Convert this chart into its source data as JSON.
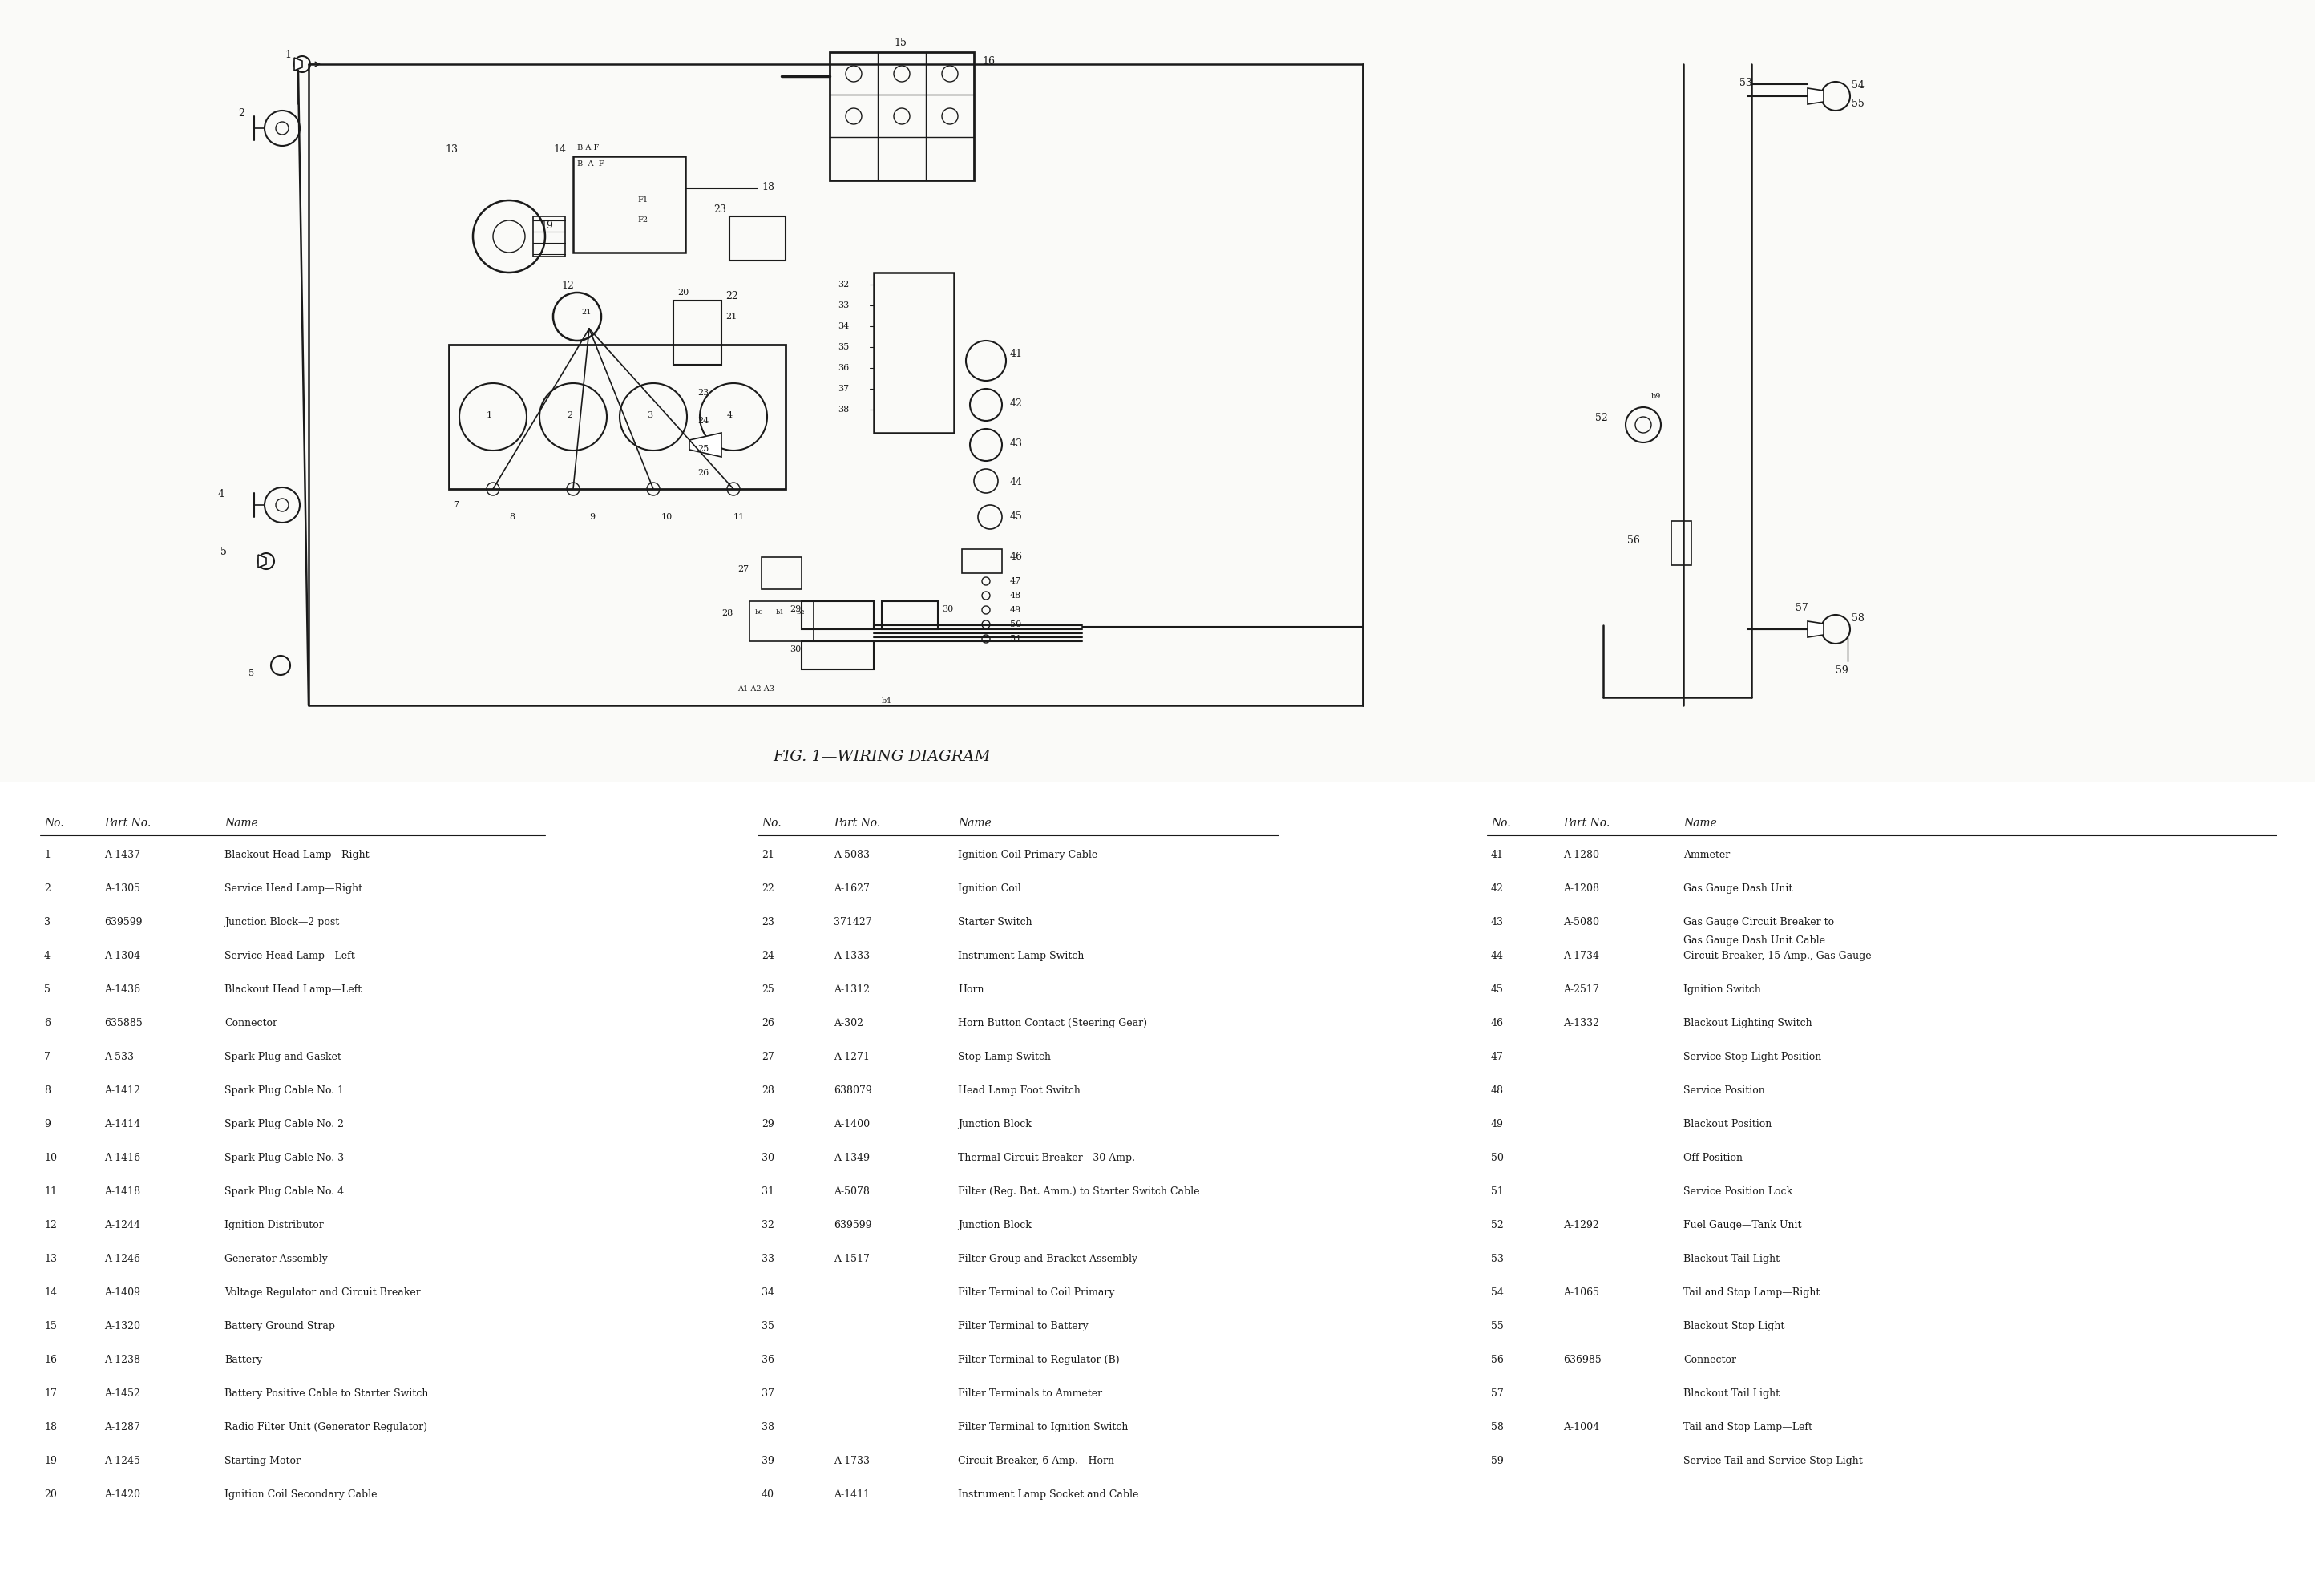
{
  "title": "FIG. 1—WIRING DIAGRAM",
  "bg_color": "#f0eeea",
  "diagram_bg": "#f8f6f2",
  "col1_data": [
    [
      "1",
      "A-1437",
      "Blackout Head Lamp—Right"
    ],
    [
      "2",
      "A-1305",
      "Service Head Lamp—Right"
    ],
    [
      "3",
      "639599",
      "Junction Block—2 post"
    ],
    [
      "4",
      "A-1304",
      "Service Head Lamp—Left"
    ],
    [
      "5",
      "A-1436",
      "Blackout Head Lamp—Left"
    ],
    [
      "6",
      "635885",
      "Connector"
    ],
    [
      "7",
      "A-533",
      "Spark Plug and Gasket"
    ],
    [
      "8",
      "A-1412",
      "Spark Plug Cable No. 1"
    ],
    [
      "9",
      "A-1414",
      "Spark Plug Cable No. 2"
    ],
    [
      "10",
      "A-1416",
      "Spark Plug Cable No. 3"
    ],
    [
      "11",
      "A-1418",
      "Spark Plug Cable No. 4"
    ],
    [
      "12",
      "A-1244",
      "Ignition Distributor"
    ],
    [
      "13",
      "A-1246",
      "Generator Assembly"
    ],
    [
      "14",
      "A-1409",
      "Voltage Regulator and Circuit Breaker"
    ],
    [
      "15",
      "A-1320",
      "Battery Ground Strap"
    ],
    [
      "16",
      "A-1238",
      "Battery"
    ],
    [
      "17",
      "A-1452",
      "Battery Positive Cable to Starter Switch"
    ],
    [
      "18",
      "A-1287",
      "Radio Filter Unit (Generator Regulator)"
    ],
    [
      "19",
      "A-1245",
      "Starting Motor"
    ],
    [
      "20",
      "A-1420",
      "Ignition Coil Secondary Cable"
    ]
  ],
  "col2_data": [
    [
      "21",
      "A-5083",
      "Ignition Coil Primary Cable"
    ],
    [
      "22",
      "A-1627",
      "Ignition Coil"
    ],
    [
      "23",
      "371427",
      "Starter Switch"
    ],
    [
      "24",
      "A-1333",
      "Instrument Lamp Switch"
    ],
    [
      "25",
      "A-1312",
      "Horn"
    ],
    [
      "26",
      "A-302",
      "Horn Button Contact (Steering Gear)"
    ],
    [
      "27",
      "A-1271",
      "Stop Lamp Switch"
    ],
    [
      "28",
      "638079",
      "Head Lamp Foot Switch"
    ],
    [
      "29",
      "A-1400",
      "Junction Block"
    ],
    [
      "30",
      "A-1349",
      "Thermal Circuit Breaker—30 Amp."
    ],
    [
      "31",
      "A-5078",
      "Filter (Reg. Bat. Amm.) to Starter Switch Cable"
    ],
    [
      "32",
      "639599",
      "Junction Block"
    ],
    [
      "33",
      "A-1517",
      "Filter Group and Bracket Assembly"
    ],
    [
      "34",
      "",
      "Filter Terminal to Coil Primary"
    ],
    [
      "35",
      "",
      "Filter Terminal to Battery"
    ],
    [
      "36",
      "",
      "Filter Terminal to Regulator (B)"
    ],
    [
      "37",
      "",
      "Filter Terminals to Ammeter"
    ],
    [
      "38",
      "",
      "Filter Terminal to Ignition Switch"
    ],
    [
      "39",
      "A-1733",
      "Circuit Breaker, 6 Amp.—Horn"
    ],
    [
      "40",
      "A-1411",
      "Instrument Lamp Socket and Cable"
    ]
  ],
  "col3_data": [
    [
      "41",
      "A-1280",
      "Ammeter"
    ],
    [
      "42",
      "A-1208",
      "Gas Gauge Dash Unit"
    ],
    [
      "43",
      "A-5080",
      "Gas Gauge Circuit Breaker to Gas Gauge Dash Unit Cable"
    ],
    [
      "44",
      "A-1734",
      "Circuit Breaker, 15 Amp., Gas Gauge"
    ],
    [
      "45",
      "A-2517",
      "Ignition Switch"
    ],
    [
      "46",
      "A-1332",
      "Blackout Lighting Switch"
    ],
    [
      "47",
      "",
      "Service Stop Light Position"
    ],
    [
      "48",
      "",
      "Service Position"
    ],
    [
      "49",
      "",
      "Blackout Position"
    ],
    [
      "50",
      "",
      "Off Position"
    ],
    [
      "51",
      "",
      "Service Position Lock"
    ],
    [
      "52",
      "A-1292",
      "Fuel Gauge—Tank Unit"
    ],
    [
      "53",
      "",
      "Blackout Tail Light"
    ],
    [
      "54",
      "A-1065",
      "Tail and Stop Lamp—Right"
    ],
    [
      "55",
      "",
      "Blackout Stop Light"
    ],
    [
      "56",
      "636985",
      "Connector"
    ],
    [
      "57",
      "",
      "Blackout Tail Light"
    ],
    [
      "58",
      "A-1004",
      "Tail and Stop Lamp—Left"
    ],
    [
      "59",
      "",
      "Service Tail and Service Stop Light"
    ]
  ]
}
